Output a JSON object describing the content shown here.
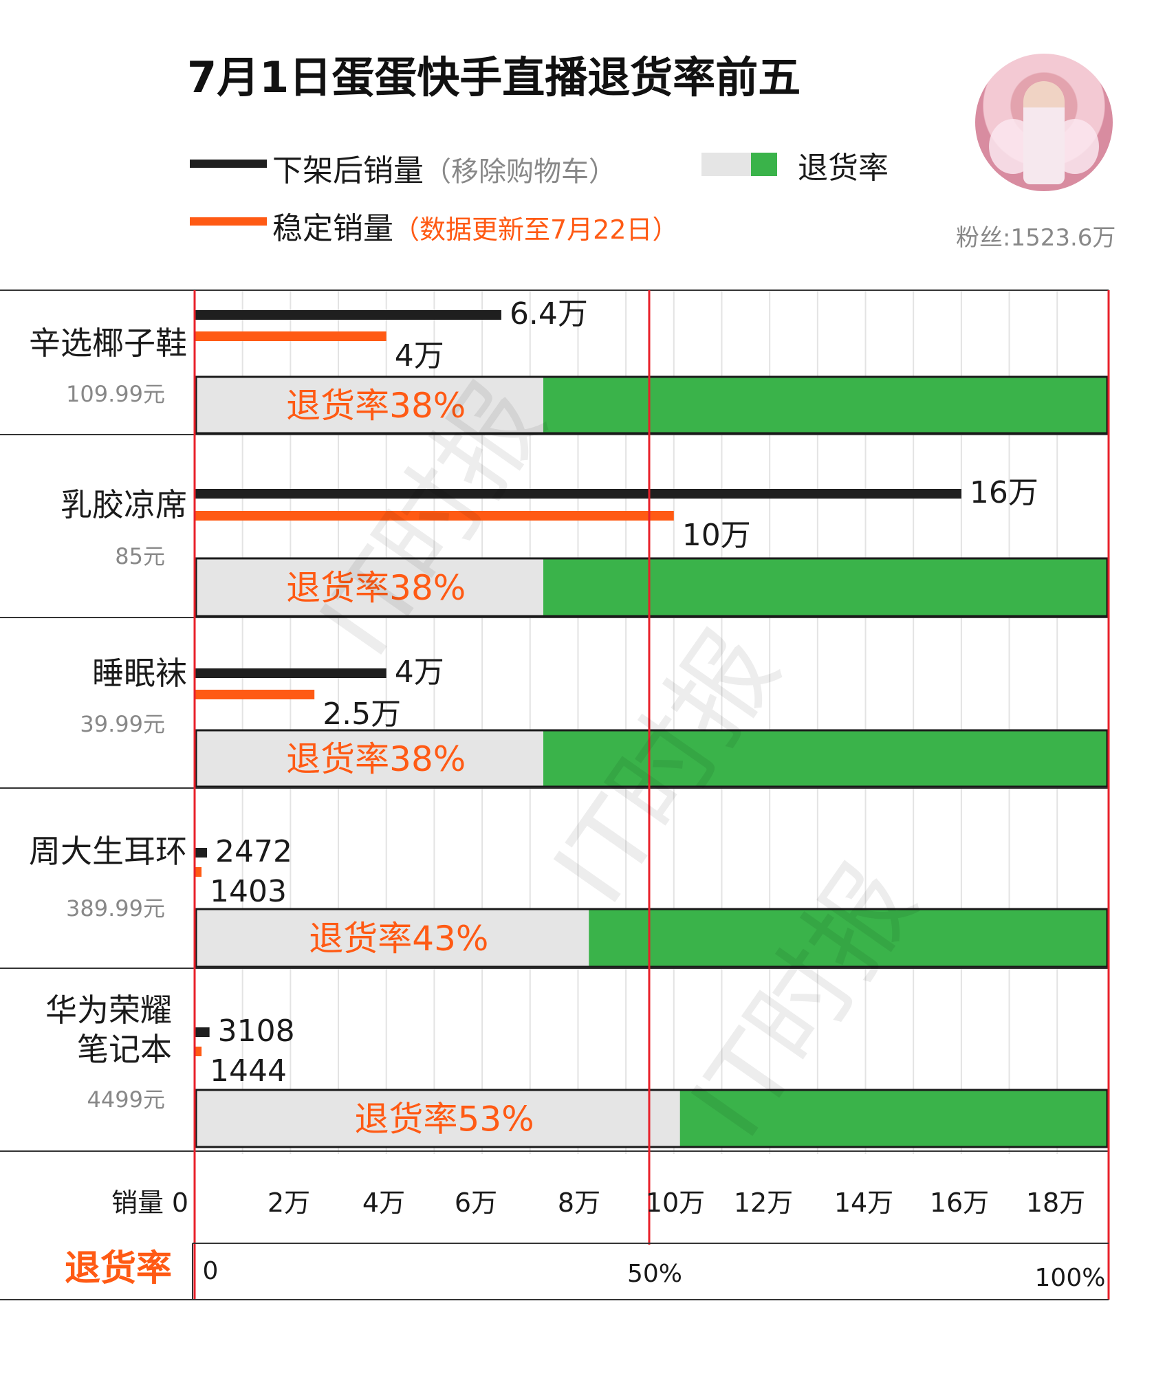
{
  "title": "7月1日蛋蛋快手直播退货率前五",
  "legend": {
    "black_label": "下架后销量",
    "black_note": "（移除购物车）",
    "orange_label": "稳定销量",
    "orange_note": "（数据更新至7月22日）",
    "rate_label": "退货率"
  },
  "fans": "粉丝:1523.6万",
  "watermark": "IT时报",
  "colors": {
    "black_bar": "#1f1f1f",
    "orange_bar": "#ff5a14",
    "rate_gray": "#e5e5e5",
    "rate_green": "#3ab34a",
    "red_line": "#e8202a",
    "rate_text": "#ff5a14"
  },
  "chart_data": {
    "type": "bar",
    "orientation": "horizontal",
    "x_axis_sales": {
      "label": "销量",
      "ticks": [
        "0",
        "2万",
        "4万",
        "6万",
        "8万",
        "10万",
        "12万",
        "14万",
        "16万",
        "18万"
      ],
      "range": [
        0,
        190000
      ]
    },
    "x_axis_rate": {
      "label": "退货率",
      "ticks": [
        "0",
        "50%",
        "100%"
      ],
      "range": [
        0,
        100
      ]
    },
    "categories": [
      {
        "name": "辛选椰子鞋",
        "price": "109.99元"
      },
      {
        "name": "乳胶凉席",
        "price": "85元"
      },
      {
        "name": "睡眠袜",
        "price": "39.99元"
      },
      {
        "name": "周大生耳环",
        "price": "389.99元"
      },
      {
        "name": "华为荣耀笔记本",
        "price": "4499元"
      }
    ],
    "series": [
      {
        "name": "下架后销量（移除购物车）",
        "values": [
          64000,
          160000,
          40000,
          2472,
          3108
        ],
        "labels": [
          "6.4万",
          "16万",
          "4万",
          "2472",
          "3108"
        ]
      },
      {
        "name": "稳定销量",
        "values": [
          40000,
          100000,
          25000,
          1403,
          1444
        ],
        "labels": [
          "4万",
          "10万",
          "2.5万",
          "1403",
          "1444"
        ]
      },
      {
        "name": "退货率",
        "values": [
          38,
          38,
          38,
          43,
          53
        ],
        "labels": [
          "退货率38%",
          "退货率38%",
          "退货率38%",
          "退货率43%",
          "退货率53%"
        ]
      }
    ]
  }
}
